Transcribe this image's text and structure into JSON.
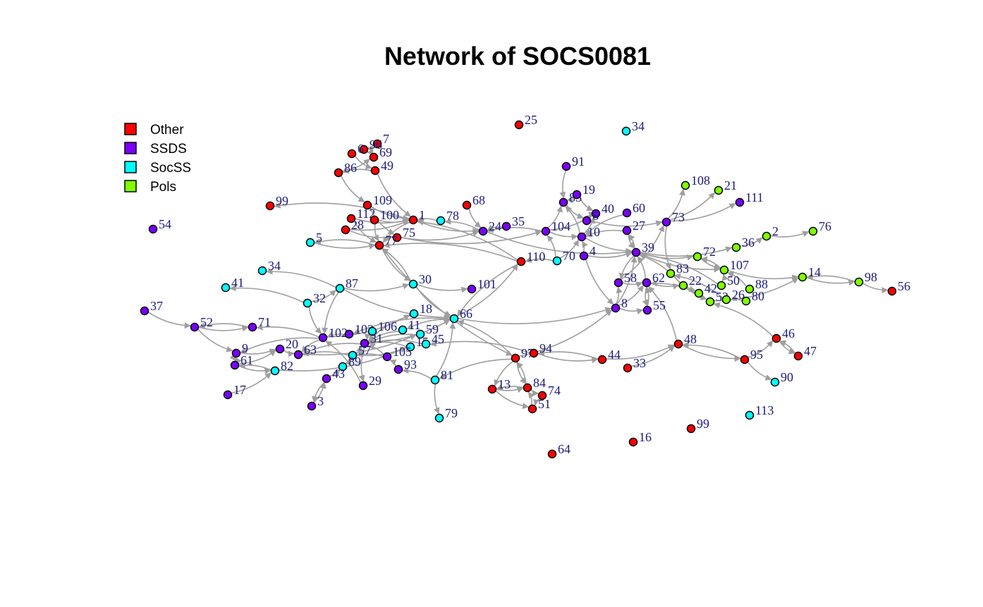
{
  "title": "Network of SOCS0081",
  "legend": [
    {
      "label": "Other",
      "color": "#ff0000"
    },
    {
      "label": "SSDS",
      "color": "#7a00ff"
    },
    {
      "label": "SocSS",
      "color": "#00ffff"
    },
    {
      "label": "Pols",
      "color": "#7fff00"
    }
  ],
  "colors": {
    "Other": "#ff0000",
    "SSDS": "#7a00ff",
    "SocSS": "#00ffff",
    "Pols": "#7fff00",
    "edge": "#9e9e9e"
  },
  "nodes": [
    {
      "id": "25",
      "group": "Other"
    },
    {
      "id": "34a",
      "label": "34",
      "group": "SocSS"
    },
    {
      "id": "7",
      "group": "Other"
    },
    {
      "id": "96",
      "group": "Other"
    },
    {
      "id": "6a",
      "label": "6",
      "group": "Other"
    },
    {
      "id": "69",
      "group": "Other"
    },
    {
      "id": "86",
      "group": "Other"
    },
    {
      "id": "49",
      "group": "Other"
    },
    {
      "id": "91",
      "group": "SSDS"
    },
    {
      "id": "85",
      "group": "SSDS"
    },
    {
      "id": "19",
      "group": "SSDS"
    },
    {
      "id": "40",
      "group": "SSDS"
    },
    {
      "id": "6",
      "group": "SSDS"
    },
    {
      "id": "60",
      "group": "SSDS"
    },
    {
      "id": "108",
      "group": "Pols"
    },
    {
      "id": "21",
      "group": "Pols"
    },
    {
      "id": "111",
      "group": "SSDS"
    },
    {
      "id": "99a",
      "label": "99",
      "group": "Other"
    },
    {
      "id": "109",
      "group": "Other"
    },
    {
      "id": "68",
      "group": "Other"
    },
    {
      "id": "54",
      "group": "SSDS"
    },
    {
      "id": "112",
      "group": "Other"
    },
    {
      "id": "100",
      "group": "Other"
    },
    {
      "id": "1",
      "group": "Other"
    },
    {
      "id": "78",
      "group": "SocSS"
    },
    {
      "id": "24",
      "group": "SSDS"
    },
    {
      "id": "35",
      "group": "SSDS"
    },
    {
      "id": "104",
      "group": "SSDS"
    },
    {
      "id": "10",
      "group": "SSDS"
    },
    {
      "id": "27",
      "group": "SSDS"
    },
    {
      "id": "73",
      "group": "SSDS"
    },
    {
      "id": "2",
      "group": "Pols"
    },
    {
      "id": "76",
      "group": "Pols"
    },
    {
      "id": "28",
      "group": "Other"
    },
    {
      "id": "75",
      "group": "Other"
    },
    {
      "id": "5",
      "group": "SocSS"
    },
    {
      "id": "77",
      "group": "Other"
    },
    {
      "id": "4",
      "group": "SSDS"
    },
    {
      "id": "70",
      "group": "SocSS"
    },
    {
      "id": "39",
      "group": "SSDS"
    },
    {
      "id": "36",
      "group": "Pols"
    },
    {
      "id": "72",
      "group": "Pols"
    },
    {
      "id": "110",
      "group": "Other"
    },
    {
      "id": "34b",
      "label": "34",
      "group": "SocSS"
    },
    {
      "id": "83",
      "group": "Pols"
    },
    {
      "id": "107",
      "group": "Pols"
    },
    {
      "id": "14",
      "group": "Pols"
    },
    {
      "id": "98",
      "group": "Pols"
    },
    {
      "id": "56",
      "group": "Other"
    },
    {
      "id": "41",
      "group": "SocSS"
    },
    {
      "id": "87",
      "group": "SocSS"
    },
    {
      "id": "30",
      "group": "SocSS"
    },
    {
      "id": "101",
      "group": "SSDS"
    },
    {
      "id": "58",
      "group": "SSDS"
    },
    {
      "id": "62",
      "group": "SSDS"
    },
    {
      "id": "22",
      "group": "Pols"
    },
    {
      "id": "42",
      "group": "Pols"
    },
    {
      "id": "50",
      "group": "Pols"
    },
    {
      "id": "88",
      "group": "Pols"
    },
    {
      "id": "53",
      "group": "Pols"
    },
    {
      "id": "26",
      "group": "Pols"
    },
    {
      "id": "80",
      "group": "Pols"
    },
    {
      "id": "32",
      "group": "SocSS"
    },
    {
      "id": "8",
      "group": "SSDS"
    },
    {
      "id": "55",
      "group": "SSDS"
    },
    {
      "id": "37",
      "group": "SSDS"
    },
    {
      "id": "18",
      "group": "SocSS"
    },
    {
      "id": "66",
      "group": "SocSS"
    },
    {
      "id": "52",
      "group": "SSDS"
    },
    {
      "id": "71",
      "group": "SSDS"
    },
    {
      "id": "102",
      "group": "SSDS"
    },
    {
      "id": "103",
      "group": "SSDS"
    },
    {
      "id": "106",
      "group": "SocSS"
    },
    {
      "id": "11",
      "group": "SocSS"
    },
    {
      "id": "59",
      "group": "SocSS"
    },
    {
      "id": "31",
      "group": "SSDS"
    },
    {
      "id": "15",
      "group": "SocSS"
    },
    {
      "id": "45",
      "group": "SocSS"
    },
    {
      "id": "46",
      "group": "Other"
    },
    {
      "id": "48",
      "group": "Other"
    },
    {
      "id": "9",
      "group": "SSDS"
    },
    {
      "id": "20",
      "group": "SSDS"
    },
    {
      "id": "63",
      "group": "SSDS"
    },
    {
      "id": "57",
      "group": "SocSS"
    },
    {
      "id": "105",
      "group": "SSDS"
    },
    {
      "id": "97",
      "group": "Other"
    },
    {
      "id": "94",
      "group": "Other"
    },
    {
      "id": "44",
      "group": "Other"
    },
    {
      "id": "95",
      "group": "Other"
    },
    {
      "id": "47",
      "group": "Other"
    },
    {
      "id": "61",
      "group": "SSDS"
    },
    {
      "id": "82",
      "group": "SocSS"
    },
    {
      "id": "89",
      "group": "SocSS"
    },
    {
      "id": "93",
      "group": "SSDS"
    },
    {
      "id": "33",
      "group": "Other"
    },
    {
      "id": "43",
      "group": "SSDS"
    },
    {
      "id": "81",
      "group": "SocSS"
    },
    {
      "id": "29",
      "group": "SSDS"
    },
    {
      "id": "90",
      "group": "SocSS"
    },
    {
      "id": "13",
      "group": "Other"
    },
    {
      "id": "84",
      "group": "Other"
    },
    {
      "id": "74",
      "group": "Other"
    },
    {
      "id": "17",
      "group": "SSDS"
    },
    {
      "id": "51",
      "group": "Other"
    },
    {
      "id": "3",
      "group": "SSDS"
    },
    {
      "id": "79",
      "group": "SocSS"
    },
    {
      "id": "113",
      "group": "SocSS"
    },
    {
      "id": "99b",
      "label": "99",
      "group": "Other"
    },
    {
      "id": "16",
      "group": "Other"
    },
    {
      "id": "64",
      "group": "Other"
    }
  ],
  "edges": [
    [
      "86",
      "109"
    ],
    [
      "49",
      "1"
    ],
    [
      "109",
      "1"
    ],
    [
      "109",
      "75"
    ],
    [
      "112",
      "77"
    ],
    [
      "100",
      "77"
    ],
    [
      "28",
      "75"
    ],
    [
      "1",
      "77"
    ],
    [
      "1",
      "99a"
    ],
    [
      "78",
      "1"
    ],
    [
      "68",
      "24"
    ],
    [
      "24",
      "78"
    ],
    [
      "35",
      "24"
    ],
    [
      "104",
      "24"
    ],
    [
      "75",
      "104"
    ],
    [
      "77",
      "5"
    ],
    [
      "5",
      "77"
    ],
    [
      "77",
      "30"
    ],
    [
      "30",
      "77"
    ],
    [
      "30",
      "66"
    ],
    [
      "30",
      "101"
    ],
    [
      "87",
      "30"
    ],
    [
      "87",
      "34b"
    ],
    [
      "32",
      "41"
    ],
    [
      "32",
      "87"
    ],
    [
      "87",
      "102"
    ],
    [
      "110",
      "77"
    ],
    [
      "110",
      "1"
    ],
    [
      "110",
      "66"
    ],
    [
      "70",
      "110"
    ],
    [
      "70",
      "104"
    ],
    [
      "104",
      "85"
    ],
    [
      "104",
      "40"
    ],
    [
      "91",
      "85"
    ],
    [
      "85",
      "19"
    ],
    [
      "19",
      "40"
    ],
    [
      "40",
      "6"
    ],
    [
      "85",
      "6"
    ],
    [
      "10",
      "40"
    ],
    [
      "10",
      "85"
    ],
    [
      "4",
      "10"
    ],
    [
      "70",
      "10"
    ],
    [
      "27",
      "10"
    ],
    [
      "60",
      "10"
    ],
    [
      "10",
      "39"
    ],
    [
      "4",
      "39"
    ],
    [
      "27",
      "39"
    ],
    [
      "39",
      "27"
    ],
    [
      "73",
      "108"
    ],
    [
      "73",
      "21"
    ],
    [
      "73",
      "111"
    ],
    [
      "6",
      "73"
    ],
    [
      "39",
      "72"
    ],
    [
      "39",
      "36"
    ],
    [
      "36",
      "2"
    ],
    [
      "2",
      "76"
    ],
    [
      "72",
      "107"
    ],
    [
      "107",
      "14"
    ],
    [
      "14",
      "98"
    ],
    [
      "98",
      "56"
    ],
    [
      "98",
      "14"
    ],
    [
      "39",
      "58"
    ],
    [
      "58",
      "62"
    ],
    [
      "62",
      "39"
    ],
    [
      "8",
      "58"
    ],
    [
      "8",
      "62"
    ],
    [
      "55",
      "62"
    ],
    [
      "62",
      "55"
    ],
    [
      "62",
      "22"
    ],
    [
      "42",
      "62"
    ],
    [
      "83",
      "42"
    ],
    [
      "83",
      "53"
    ],
    [
      "50",
      "107"
    ],
    [
      "88",
      "107"
    ],
    [
      "26",
      "83"
    ],
    [
      "80",
      "26"
    ],
    [
      "73",
      "83"
    ],
    [
      "53",
      "14"
    ],
    [
      "8",
      "39"
    ],
    [
      "8",
      "55"
    ],
    [
      "4",
      "8"
    ],
    [
      "66",
      "8"
    ],
    [
      "66",
      "110"
    ],
    [
      "37",
      "52"
    ],
    [
      "52",
      "71"
    ],
    [
      "71",
      "52"
    ],
    [
      "52",
      "9"
    ],
    [
      "9",
      "20"
    ],
    [
      "20",
      "63"
    ],
    [
      "61",
      "20"
    ],
    [
      "61",
      "82"
    ],
    [
      "82",
      "61"
    ],
    [
      "102",
      "71"
    ],
    [
      "102",
      "9"
    ],
    [
      "103",
      "102"
    ],
    [
      "106",
      "31"
    ],
    [
      "11",
      "31"
    ],
    [
      "18",
      "31"
    ],
    [
      "59",
      "31"
    ],
    [
      "15",
      "31"
    ],
    [
      "45",
      "31"
    ],
    [
      "31",
      "66"
    ],
    [
      "31",
      "63"
    ],
    [
      "57",
      "63"
    ],
    [
      "89",
      "57"
    ],
    [
      "43",
      "89"
    ],
    [
      "3",
      "43"
    ],
    [
      "43",
      "3"
    ],
    [
      "29",
      "102"
    ],
    [
      "31",
      "29"
    ],
    [
      "105",
      "57"
    ],
    [
      "93",
      "105"
    ],
    [
      "81",
      "93"
    ],
    [
      "81",
      "79"
    ],
    [
      "81",
      "66"
    ],
    [
      "97",
      "81"
    ],
    [
      "97",
      "66"
    ],
    [
      "94",
      "45"
    ],
    [
      "44",
      "94"
    ],
    [
      "94",
      "44"
    ],
    [
      "33",
      "48"
    ],
    [
      "48",
      "62"
    ],
    [
      "48",
      "95"
    ],
    [
      "95",
      "48"
    ],
    [
      "95",
      "46"
    ],
    [
      "46",
      "47"
    ],
    [
      "47",
      "46"
    ],
    [
      "95",
      "90"
    ],
    [
      "46",
      "53"
    ],
    [
      "97",
      "8"
    ],
    [
      "97",
      "13"
    ],
    [
      "13",
      "84"
    ],
    [
      "84",
      "13"
    ],
    [
      "84",
      "74"
    ],
    [
      "74",
      "51"
    ],
    [
      "51",
      "84"
    ],
    [
      "13",
      "51"
    ],
    [
      "97",
      "84"
    ],
    [
      "84",
      "97"
    ],
    [
      "17",
      "82"
    ],
    [
      "82",
      "15"
    ],
    [
      "57",
      "15"
    ],
    [
      "63",
      "59"
    ],
    [
      "102",
      "18"
    ],
    [
      "66",
      "11"
    ],
    [
      "66",
      "103"
    ],
    [
      "77",
      "97"
    ],
    [
      "44",
      "48"
    ],
    [
      "22",
      "39"
    ],
    [
      "107",
      "72"
    ],
    [
      "50",
      "39"
    ],
    [
      "39",
      "107"
    ],
    [
      "58",
      "73"
    ],
    [
      "24",
      "39"
    ],
    [
      "1",
      "24"
    ],
    [
      "75",
      "24"
    ],
    [
      "86",
      "69"
    ],
    [
      "6a",
      "49"
    ],
    [
      "96",
      "7"
    ],
    [
      "69",
      "96"
    ],
    [
      "49",
      "86"
    ],
    [
      "100",
      "1"
    ],
    [
      "112",
      "1"
    ],
    [
      "28",
      "1"
    ],
    [
      "104",
      "10"
    ],
    [
      "105",
      "31"
    ],
    [
      "89",
      "31"
    ],
    [
      "61",
      "9"
    ],
    [
      "9",
      "61"
    ],
    [
      "32",
      "102"
    ],
    [
      "87",
      "66"
    ],
    [
      "102",
      "63"
    ]
  ]
}
